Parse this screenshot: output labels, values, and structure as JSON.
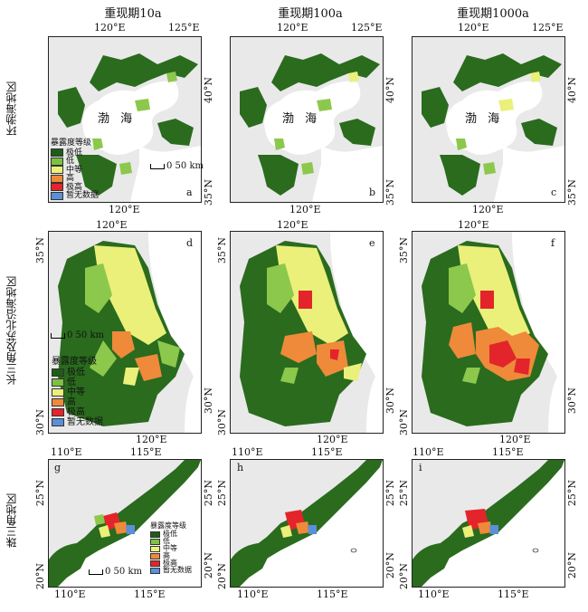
{
  "columns": [
    {
      "title": "重现期10a"
    },
    {
      "title": "重现期100a"
    },
    {
      "title": "重现期1000a"
    }
  ],
  "rows": [
    {
      "label": "环渤海地区",
      "ticks_top": [
        "120°E",
        "125°E"
      ],
      "ticks_bottom": [
        "120°E"
      ],
      "ticks_right": [
        "40°N",
        "35°N"
      ],
      "sea": "渤 海"
    },
    {
      "label": "长三角及苏北沿海地区",
      "ticks_top": [
        "120°E"
      ],
      "ticks_bottom": [
        "120°E"
      ],
      "ticks_left": [
        "35°N",
        "30°N"
      ],
      "ticks_right": [
        "30°N"
      ]
    },
    {
      "label": "珠三角地区",
      "ticks_top": [
        "110°E",
        "115°E"
      ],
      "ticks_bottom": [
        "110°E",
        "115°E"
      ],
      "ticks_left": [
        "25°N",
        "20°N"
      ],
      "ticks_right": [
        "25°N",
        "20°N"
      ]
    }
  ],
  "panel_letters": [
    "a",
    "b",
    "c",
    "d",
    "e",
    "f",
    "g",
    "h",
    "i"
  ],
  "legend": {
    "title": "暴露度等级",
    "items": [
      {
        "label": "极低",
        "color": "#1f5c17"
      },
      {
        "label": "低",
        "color": "#7cc142"
      },
      {
        "label": "中等",
        "color": "#eaf07a"
      },
      {
        "label": "高",
        "color": "#ee8a3a"
      },
      {
        "label": "极高",
        "color": "#e3242b"
      },
      {
        "label": "暂无数据",
        "color": "#5b8fd8"
      }
    ]
  },
  "scale_label": "0 50 km"
}
